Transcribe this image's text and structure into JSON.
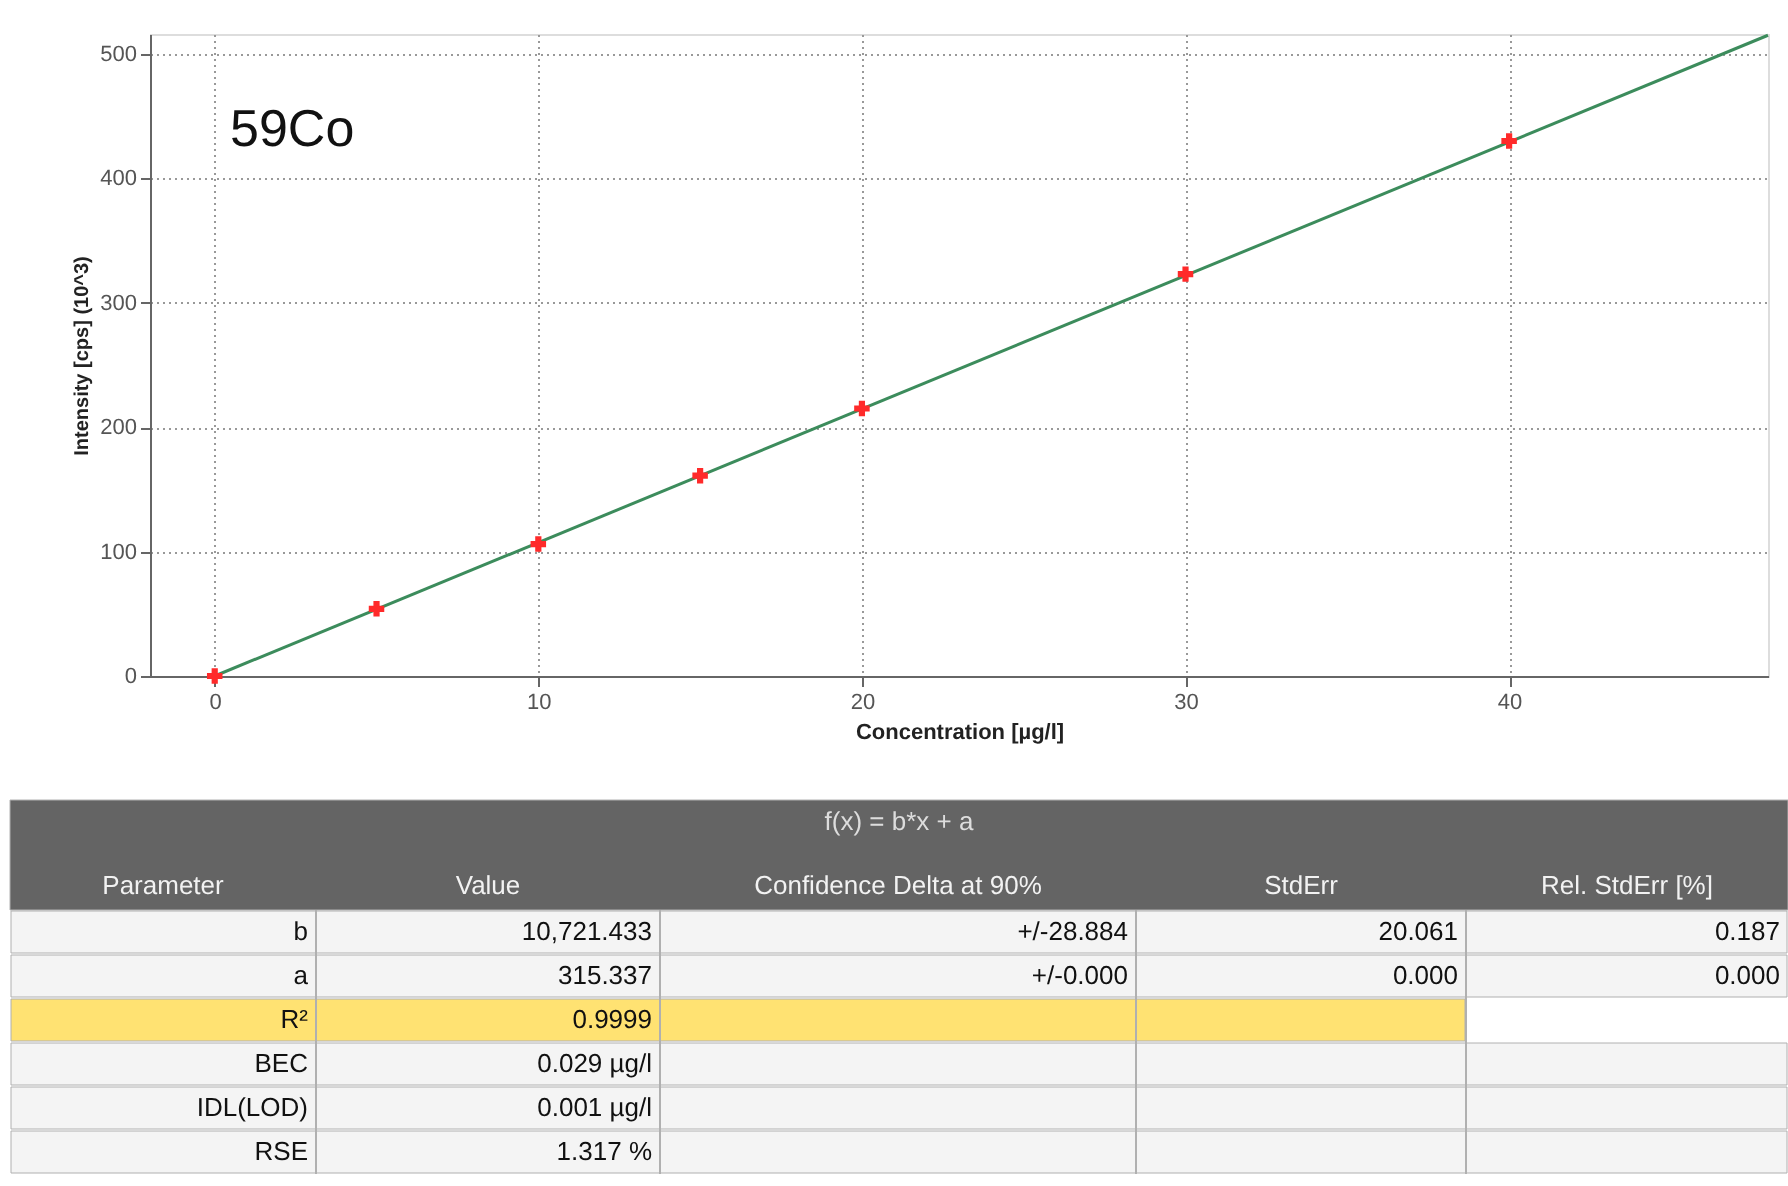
{
  "chart_data": {
    "type": "scatter",
    "xlabel": "Concentration [µg/l]",
    "ylabel": "Intensity [cps] (10^3)",
    "xlim": [
      -2,
      48
    ],
    "ylim": [
      0,
      516
    ],
    "xticks": [
      0,
      10,
      20,
      30,
      40
    ],
    "yticks": [
      0,
      100,
      200,
      300,
      400,
      500
    ],
    "grid": true,
    "marker": "cross",
    "series": [
      {
        "color": "#ff2a2a",
        "x": [
          0,
          5,
          10,
          15,
          20,
          30,
          40
        ],
        "values": [
          0,
          54,
          106,
          161,
          215,
          323,
          430
        ]
      },
      {
        "type": "line",
        "color": "#3c8c5c",
        "marker": "none",
        "line_style": "solid",
        "x": [
          0,
          48
        ],
        "values": [
          0,
          515
        ]
      }
    ],
    "annotations": [
      "59Co",
      "f(x) = b*x + a",
      "Parameter",
      "Value",
      "Confidence Delta at 90%",
      "StdErr",
      "Rel. StdErr [%]",
      "b",
      "10,721.433",
      "+/-28.884",
      "20.061",
      "0.187",
      "a",
      "315.337",
      "+/-0.000",
      "0.000",
      "0.000",
      "R²",
      "0.9999",
      "BEC",
      "0.029 µg/l",
      "IDL(LOD)",
      "0.001 µg/l",
      "RSE",
      "1.317 %"
    ]
  }
}
